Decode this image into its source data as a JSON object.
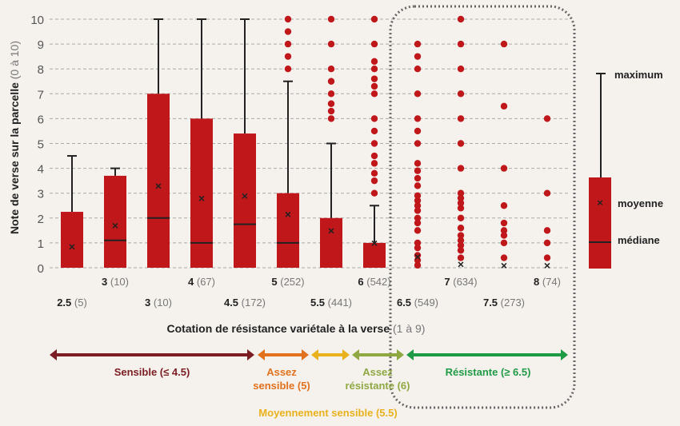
{
  "chart_data": {
    "type": "box",
    "ylabel": "Note de verse sur la parcelle",
    "ylabel_unit": "(0 à 10)",
    "xlabel": "Cotation de résistance variétale à la verse",
    "xlabel_unit": "(1 à 9)",
    "ylim": [
      0,
      10
    ],
    "yticks": [
      0,
      1,
      2,
      3,
      4,
      5,
      6,
      7,
      8,
      9,
      10
    ],
    "grid": "horizontal dashed",
    "box_color": "#c0171b",
    "categories": [
      {
        "label": "2.5",
        "n": "(5)",
        "q3": 2.25,
        "median": 0,
        "mean": 0.85,
        "max": 4.5,
        "outliers": []
      },
      {
        "label": "3",
        "n": "(10)",
        "q3": 3.7,
        "median": 1.1,
        "mean": 1.7,
        "max": 4,
        "outliers": []
      },
      {
        "label": "3",
        "n": "(10)",
        "q3": 7,
        "median": 2,
        "mean": 3.3,
        "max": 10,
        "outliers": []
      },
      {
        "label": "4",
        "n": "(67)",
        "q3": 6,
        "median": 1,
        "mean": 2.8,
        "max": 10,
        "outliers": []
      },
      {
        "label": "4.5",
        "n": "(172)",
        "q3": 5.4,
        "median": 1.75,
        "mean": 2.9,
        "max": 10,
        "outliers": []
      },
      {
        "label": "5",
        "n": "(252)",
        "q3": 3,
        "median": 1,
        "mean": 2.15,
        "max": 7.5,
        "outliers": [
          8,
          8.5,
          9,
          9.5,
          10
        ]
      },
      {
        "label": "5.5",
        "n": "(441)",
        "q3": 2,
        "median": 0,
        "mean": 1.5,
        "max": 5,
        "outliers": [
          6,
          6.3,
          6.6,
          7,
          7.5,
          8,
          9,
          10
        ]
      },
      {
        "label": "6",
        "n": "(542)",
        "q3": 1,
        "median": 0,
        "mean": 1.0,
        "max": 2.5,
        "outliers": [
          3,
          3.5,
          3.8,
          4.2,
          4.5,
          5,
          5.5,
          6,
          7,
          7.3,
          7.6,
          8,
          8.3,
          9,
          10
        ]
      },
      {
        "label": "6.5",
        "n": "(549)",
        "q3": null,
        "median": 0,
        "mean": 0.45,
        "max": null,
        "outliers": [
          0.1,
          0.3,
          0.5,
          0.8,
          1,
          1.5,
          1.8,
          2,
          2.3,
          2.5,
          2.7,
          2.9,
          3.3,
          3.6,
          3.9,
          4.2,
          5,
          5.5,
          6,
          7,
          8,
          8.5,
          9
        ]
      },
      {
        "label": "7",
        "n": "(634)",
        "q3": null,
        "median": 0,
        "mean": 0.15,
        "max": null,
        "outliers": [
          0.4,
          0.7,
          0.9,
          1.1,
          1.3,
          1.6,
          2,
          2.4,
          2.6,
          2.8,
          3,
          4,
          5,
          6,
          7,
          8,
          9,
          10
        ]
      },
      {
        "label": "7.5",
        "n": "(273)",
        "q3": null,
        "median": 0,
        "mean": 0.1,
        "max": null,
        "outliers": [
          0.4,
          1,
          1.3,
          1.5,
          1.8,
          2.5,
          4,
          6.5,
          9
        ]
      },
      {
        "label": "8",
        "n": "(74)",
        "q3": null,
        "median": 0,
        "mean": 0.1,
        "max": null,
        "outliers": [
          0.4,
          1,
          1.5,
          3,
          6
        ]
      }
    ],
    "legend": {
      "maximum": "maximum",
      "mean": "moyenne",
      "median": "médiane",
      "placement": "right"
    }
  },
  "classes": [
    {
      "label": "Sensible (≤ 4.5)",
      "color": "#7b1d22"
    },
    {
      "label": "Assez",
      "label2": "sensible (5)",
      "color": "#e2711d"
    },
    {
      "label": "Moyennement sensible (5.5)",
      "color": "#e9b11c"
    },
    {
      "label": "Assez",
      "label2": "résistante (6)",
      "color": "#8fa842"
    },
    {
      "label": "Résistante (≥ 6.5)",
      "color": "#1f9a45"
    }
  ]
}
